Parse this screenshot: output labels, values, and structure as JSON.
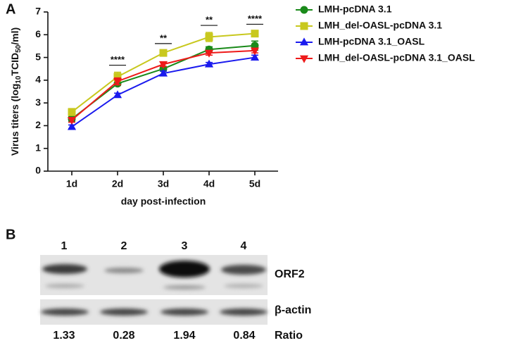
{
  "chart_data": {
    "type": "line",
    "panel_label": "A",
    "y_label_parts": [
      "Virus titers (log",
      "10",
      "TCID",
      "50",
      "/ml)"
    ],
    "x_label": "day post-infection",
    "categories": [
      "1d",
      "2d",
      "3d",
      "4d",
      "5d"
    ],
    "ylim": [
      0,
      7
    ],
    "yticks": [
      0,
      1,
      2,
      3,
      4,
      5,
      6,
      7
    ],
    "series": [
      {
        "name": "LMH-pcDNA 3.1",
        "color": "#1a8a1a",
        "marker": "circle",
        "values": [
          2.3,
          3.85,
          4.5,
          5.35,
          5.52
        ],
        "errors": [
          0.1,
          0.08,
          0.1,
          0.12,
          0.2
        ]
      },
      {
        "name": "LMH_del-OASL-pcDNA 3.1",
        "color": "#c8c81e",
        "marker": "square",
        "values": [
          2.6,
          4.15,
          5.2,
          5.9,
          6.05
        ],
        "errors": [
          0.15,
          0.2,
          0.1,
          0.2,
          0.1
        ]
      },
      {
        "name": "LMH-pcDNA 3.1_OASL",
        "color": "#1a1aee",
        "marker": "triangle-up",
        "values": [
          1.95,
          3.35,
          4.3,
          4.7,
          5.0
        ],
        "errors": [
          0.08,
          0.08,
          0.1,
          0.08,
          0.1
        ]
      },
      {
        "name": "LMH_del-OASL-pcDNA 3.1_OASL",
        "color": "#ee1a1a",
        "marker": "triangle-down",
        "values": [
          2.25,
          3.95,
          4.7,
          5.2,
          5.3
        ],
        "errors": [
          0.1,
          0.15,
          0.1,
          0.1,
          0.1
        ]
      }
    ],
    "annotations": [
      {
        "category": "2d",
        "text": "****"
      },
      {
        "category": "3d",
        "text": "**"
      },
      {
        "category": "4d",
        "text": "**"
      },
      {
        "category": "5d",
        "text": "****"
      }
    ]
  },
  "blot": {
    "panel_label": "B",
    "lanes": [
      "1",
      "2",
      "3",
      "4"
    ],
    "bands": [
      "ORF2",
      "β-actin"
    ],
    "ratio_label": "Ratio",
    "ratios": [
      1.33,
      0.28,
      1.94,
      0.84
    ]
  }
}
